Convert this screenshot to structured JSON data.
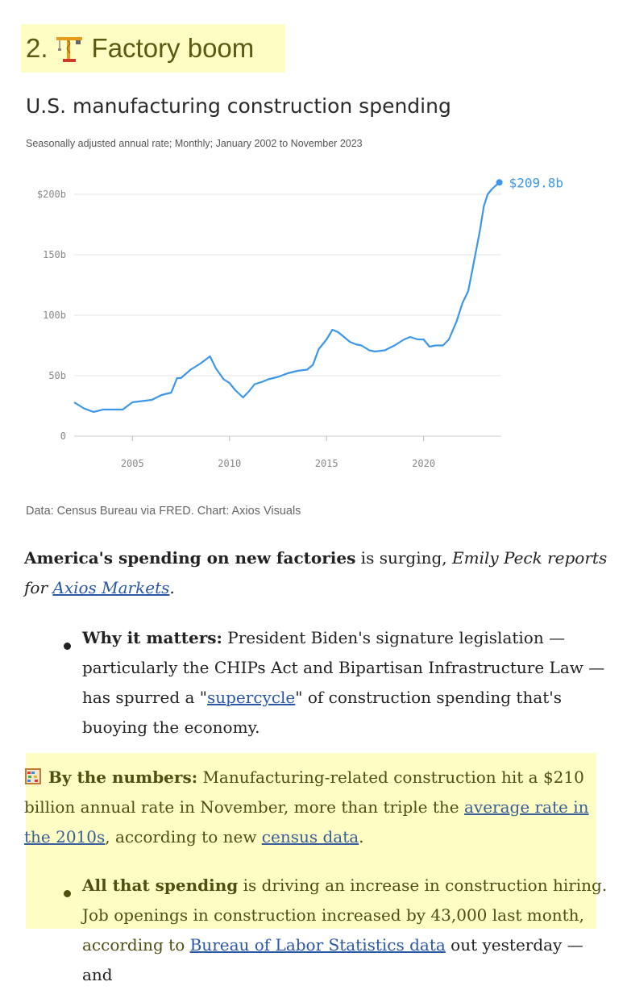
{
  "heading": {
    "number": "2.",
    "text": "Factory boom",
    "icon": "construction-crane-icon"
  },
  "chart_data": {
    "type": "line",
    "title": "U.S. manufacturing construction spending",
    "subtitle": "Seasonally adjusted annual rate; Monthly; January 2002 to November 2023",
    "source": "Data: Census Bureau via FRED. Chart: Axios Visuals",
    "ylim": [
      0,
      210
    ],
    "xlim": [
      2002,
      2023.9
    ],
    "y_ticks": [
      0,
      50,
      100,
      150,
      200
    ],
    "y_tick_labels": [
      "0",
      "50b",
      "100b",
      "150b",
      "$200b"
    ],
    "x_ticks": [
      2005,
      2010,
      2015,
      2020
    ],
    "x_tick_labels": [
      "2005",
      "2010",
      "2015",
      "2020"
    ],
    "grid": "horizontal",
    "line_color": "#3d97e8",
    "end_label": "$209.8b",
    "series": [
      {
        "x": [
          2002.0,
          2002.5,
          2003.0,
          2003.5,
          2004.0,
          2004.5,
          2005.0,
          2005.5,
          2006.0,
          2006.5,
          2007.0,
          2007.3,
          2007.5,
          2008.0,
          2008.5,
          2009.0,
          2009.3,
          2009.7,
          2010.0,
          2010.3,
          2010.7,
          2011.0,
          2011.3,
          2011.7,
          2012.0,
          2012.5,
          2013.0,
          2013.5,
          2014.0,
          2014.3,
          2014.6,
          2015.0,
          2015.3,
          2015.6,
          2015.9,
          2016.2,
          2016.5,
          2016.8,
          2017.2,
          2017.5,
          2018.0,
          2018.5,
          2019.0,
          2019.3,
          2019.7,
          2020.0,
          2020.3,
          2020.6,
          2021.0,
          2021.3,
          2021.7,
          2022.0,
          2022.3,
          2022.6,
          2022.9,
          2023.1,
          2023.3,
          2023.5,
          2023.7,
          2023.9
        ],
        "values": [
          28,
          23,
          20,
          22,
          22,
          22,
          28,
          29,
          30,
          34,
          36,
          48,
          48,
          55,
          60,
          66,
          56,
          47,
          44,
          38,
          32,
          37,
          43,
          45,
          47,
          49,
          52,
          54,
          55,
          59,
          72,
          80,
          88,
          86,
          82,
          78,
          76,
          75,
          71,
          70,
          71,
          75,
          80,
          82,
          80,
          80,
          74,
          75,
          75,
          80,
          95,
          110,
          120,
          145,
          170,
          190,
          200,
          204,
          207,
          209.8
        ]
      }
    ]
  },
  "paragraph1": {
    "bold": "America's spending on new factories",
    "plain": " is surging, ",
    "italic_before": "Emily Peck reports for ",
    "link": "Axios Markets",
    "end": "."
  },
  "bullet1": {
    "bold": "Why it matters:",
    "text_a": " President Biden's signature legislation — particularly the CHIPs Act and Bipartisan Infrastructure Law — has spurred a \"",
    "link": "supercycle",
    "text_b": "\" of construction spending that's buoying the economy."
  },
  "numbers": {
    "icon": "abacus-icon",
    "bold": "By the numbers:",
    "text_a": " Manufacturing-related construction hit a $210 billion annual rate in November, more than triple the ",
    "link1": "average rate in the 2010s",
    "text_b": ", according to new ",
    "link2": "census data",
    "text_c": "."
  },
  "bullet2": {
    "bold": "All that spending",
    "text_a": " is driving an increase in construction hiring. Job openings in construction increased by 43,000 last month, according to ",
    "link": "Bureau of Labor Statistics data",
    "text_b": " out yesterday — and"
  }
}
